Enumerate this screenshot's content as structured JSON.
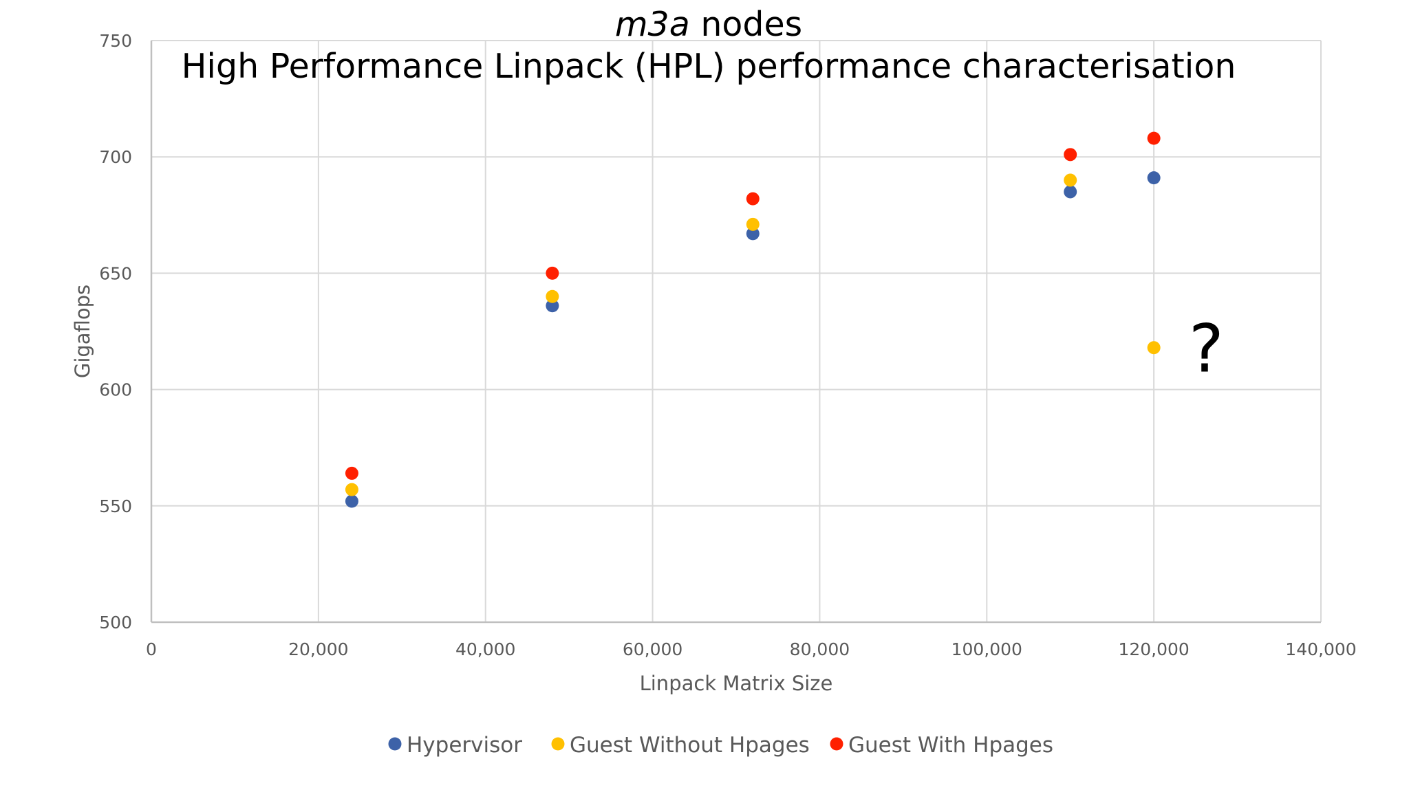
{
  "chart_data": {
    "type": "scatter",
    "title_italic": "m3a",
    "title_rest": " nodes",
    "subtitle": "High Performance Linpack (HPL) performance characterisation",
    "xlabel": "Linpack Matrix Size",
    "ylabel": "Gigaflops",
    "xlim": [
      0,
      140000
    ],
    "ylim": [
      500,
      750
    ],
    "x_ticks": [
      "0",
      "20,000",
      "40,000",
      "60,000",
      "80,000",
      "100,000",
      "120,000",
      "140,000"
    ],
    "y_ticks": [
      "500",
      "550",
      "600",
      "650",
      "700",
      "750"
    ],
    "grid": true,
    "legend_position": "bottom",
    "annotation": {
      "text": "?",
      "x": 125000,
      "y": 618
    },
    "series": [
      {
        "name": "Hypervisor",
        "color": "#3d62a8",
        "points": [
          [
            24000,
            552
          ],
          [
            48000,
            636
          ],
          [
            72000,
            667
          ],
          [
            110000,
            685
          ],
          [
            120000,
            691
          ]
        ]
      },
      {
        "name": "Guest Without Hpages",
        "color": "#ffc000",
        "points": [
          [
            24000,
            557
          ],
          [
            48000,
            640
          ],
          [
            72000,
            671
          ],
          [
            110000,
            690
          ],
          [
            120000,
            618
          ]
        ]
      },
      {
        "name": "Guest With Hpages",
        "color": "#ff2000",
        "points": [
          [
            24000,
            564
          ],
          [
            48000,
            650
          ],
          [
            72000,
            682
          ],
          [
            110000,
            701
          ],
          [
            120000,
            708
          ]
        ]
      }
    ]
  }
}
